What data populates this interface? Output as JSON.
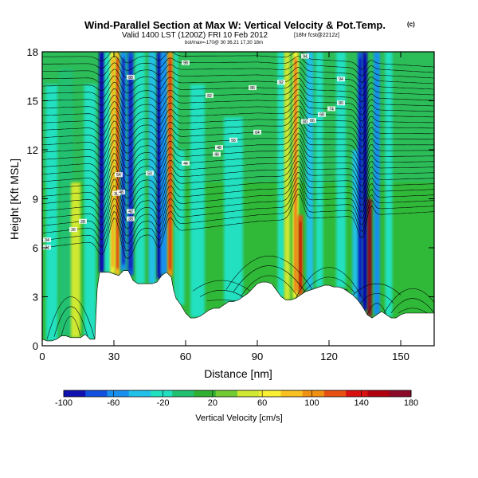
{
  "chart_data": {
    "type": "heatmap",
    "title": "Wind-Parallel Section at Max W: Vertical Velocity & Pot.Temp.",
    "title_mark": "(c)",
    "subtitle_valid": "Valid 1400 LST (1200Z) FRI 10 Feb 2012",
    "subtitle_run": "[18hr fcst@2212z]",
    "subtitle_small": "bot/max=-170@ 30 36,21 17,30 18m",
    "xlabel": "Distance [nm]",
    "ylabel": "Height [Kft MSL]",
    "xlim": [
      0,
      164
    ],
    "ylim": [
      0,
      18
    ],
    "xticks": [
      0,
      30,
      60,
      90,
      120,
      150
    ],
    "yticks": [
      0,
      3,
      6,
      9,
      12,
      15,
      18
    ],
    "colorbar": {
      "label": "Vertical Velocity [cm/s]",
      "ticks": [
        -100,
        -60,
        -20,
        20,
        60,
        100,
        140,
        180
      ],
      "colors": [
        "#1010b0",
        "#1050e0",
        "#1890f0",
        "#20c0e8",
        "#20e0c0",
        "#20c070",
        "#30b030",
        "#70cc30",
        "#d0e830",
        "#f8f030",
        "#f8c020",
        "#f09010",
        "#e85010",
        "#d81010",
        "#b00010",
        "#8a0a28"
      ]
    },
    "terrain_profile": {
      "x": [
        0,
        2,
        4,
        6,
        8,
        10,
        12,
        14,
        16,
        18,
        20,
        22,
        23,
        24,
        26,
        28,
        30,
        32,
        34,
        36,
        38,
        40,
        42,
        44,
        46,
        48,
        50,
        52,
        54,
        55,
        56,
        58,
        60,
        62,
        64,
        66,
        68,
        70,
        72,
        74,
        76,
        78,
        80,
        82,
        84,
        86,
        88,
        90,
        92,
        94,
        96,
        98,
        100,
        102,
        104,
        106,
        108,
        110,
        112,
        114,
        116,
        118,
        120,
        122,
        124,
        126,
        128,
        130,
        132,
        134,
        136,
        138,
        140,
        142,
        144,
        146,
        148,
        150,
        152,
        154,
        156,
        158,
        160,
        162,
        164
      ],
      "h": [
        0.4,
        0.3,
        0.3,
        0.4,
        0.6,
        0.6,
        0.5,
        0.5,
        0.5,
        0.7,
        0.4,
        0.4,
        3.5,
        4.5,
        4.5,
        4.5,
        4.4,
        4.3,
        4.6,
        4.6,
        4.0,
        3.8,
        3.8,
        3.8,
        3.8,
        3.9,
        4.3,
        4.5,
        4.2,
        3.4,
        2.9,
        2.5,
        2.0,
        1.7,
        1.7,
        1.8,
        2.0,
        2.2,
        2.3,
        2.3,
        2.5,
        2.7,
        2.7,
        2.8,
        3.0,
        3.2,
        3.5,
        3.8,
        3.9,
        3.9,
        3.8,
        3.4,
        3.0,
        2.8,
        2.8,
        2.9,
        3.1,
        3.3,
        3.4,
        3.5,
        3.6,
        3.7,
        3.7,
        3.6,
        3.6,
        3.5,
        3.3,
        3.1,
        2.8,
        2.4,
        1.9,
        1.7,
        1.9,
        2.1,
        1.9,
        1.7,
        1.7,
        1.9,
        2.0,
        2.0,
        2.0,
        2.0,
        2.0,
        2.0,
        2.0
      ]
    },
    "features": [
      {
        "x": 4,
        "width": 5,
        "ztop": 16,
        "value": -20
      },
      {
        "x": 10,
        "width": 6,
        "ztop": 17,
        "value": -10
      },
      {
        "x": 14,
        "width": 4,
        "ztop": 10,
        "value": 40
      },
      {
        "x": 20,
        "width": 5,
        "ztop": 16,
        "value": -25
      },
      {
        "x": 25,
        "width": 2.5,
        "ztop": 18,
        "value": -90
      },
      {
        "x": 27.5,
        "width": 3,
        "ztop": 18,
        "value": -30
      },
      {
        "x": 29.5,
        "width": 2.2,
        "ztop": 18,
        "value": 60
      },
      {
        "x": 31.5,
        "width": 2,
        "ztop": 18,
        "value": 90
      },
      {
        "x": 34,
        "width": 2.5,
        "ztop": 18,
        "value": -60
      },
      {
        "x": 37,
        "width": 2.5,
        "ztop": 18,
        "value": -70
      },
      {
        "x": 41,
        "width": 4,
        "ztop": 18,
        "value": -20
      },
      {
        "x": 46,
        "width": 3,
        "ztop": 18,
        "value": -40
      },
      {
        "x": 49,
        "width": 2,
        "ztop": 18,
        "value": -90
      },
      {
        "x": 51,
        "width": 3,
        "ztop": 18,
        "value": -50
      },
      {
        "x": 53.5,
        "width": 2.2,
        "ztop": 18,
        "value": 100
      },
      {
        "x": 56,
        "width": 1.5,
        "ztop": 18,
        "value": -20
      },
      {
        "x": 58,
        "width": 3,
        "ztop": 12,
        "value": -30
      },
      {
        "x": 65,
        "width": 6,
        "ztop": 16,
        "value": -20
      },
      {
        "x": 80,
        "width": 8,
        "ztop": 14,
        "value": -15
      },
      {
        "x": 100,
        "width": 3,
        "ztop": 18,
        "value": -20
      },
      {
        "x": 102.5,
        "width": 2.5,
        "ztop": 18,
        "value": 50
      },
      {
        "x": 106,
        "width": 2.5,
        "ztop": 18,
        "value": 70
      },
      {
        "x": 108,
        "width": 2,
        "ztop": 8,
        "value": 110
      },
      {
        "x": 112,
        "width": 3,
        "ztop": 18,
        "value": -40
      },
      {
        "x": 116,
        "width": 3,
        "ztop": 18,
        "value": -30
      },
      {
        "x": 125,
        "width": 4,
        "ztop": 18,
        "value": -20
      },
      {
        "x": 131,
        "width": 2.5,
        "ztop": 12,
        "value": -40
      },
      {
        "x": 133,
        "width": 2,
        "ztop": 18,
        "value": -70
      },
      {
        "x": 135,
        "width": 2,
        "ztop": 18,
        "value": -100
      },
      {
        "x": 137,
        "width": 1.8,
        "ztop": 9,
        "value": 175
      },
      {
        "x": 140,
        "width": 2.5,
        "ztop": 18,
        "value": -50
      },
      {
        "x": 145,
        "width": 3,
        "ztop": 18,
        "value": -20
      }
    ],
    "theta_contours": {
      "start_height": 6.0,
      "interval": 0.45,
      "count": 27,
      "labels": [
        {
          "x": 2,
          "value": "24"
        },
        {
          "x": 2,
          "value": "34"
        },
        {
          "x": 13,
          "value": "26"
        },
        {
          "x": 17,
          "value": "28"
        },
        {
          "x": 31,
          "value": "30"
        },
        {
          "x": 37,
          "value": "38"
        },
        {
          "x": 37,
          "value": "42"
        },
        {
          "x": 33,
          "value": "48"
        },
        {
          "x": 32,
          "value": "54"
        },
        {
          "x": 45,
          "value": "50"
        },
        {
          "x": 60,
          "value": "44"
        },
        {
          "x": 73,
          "value": "46"
        },
        {
          "x": 74,
          "value": "48"
        },
        {
          "x": 80,
          "value": "58"
        },
        {
          "x": 90,
          "value": "64"
        },
        {
          "x": 110,
          "value": "60"
        },
        {
          "x": 113,
          "value": "66"
        },
        {
          "x": 117,
          "value": "68"
        },
        {
          "x": 121,
          "value": "74"
        },
        {
          "x": 125,
          "value": "80"
        },
        {
          "x": 70,
          "value": "82"
        },
        {
          "x": 88,
          "value": "86"
        },
        {
          "x": 100,
          "value": "92"
        },
        {
          "x": 125,
          "value": "94"
        },
        {
          "x": 37,
          "value": "88"
        },
        {
          "x": 60,
          "value": "98"
        },
        {
          "x": 110,
          "value": "94"
        }
      ]
    }
  }
}
